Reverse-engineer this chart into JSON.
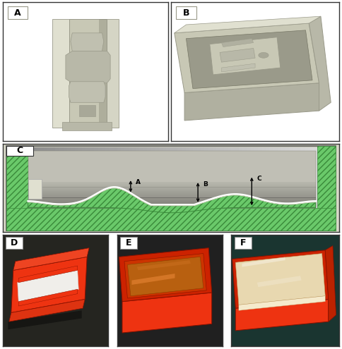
{
  "fig_width": 4.84,
  "fig_height": 4.95,
  "dpi": 100,
  "background": "#ffffff",
  "border_color": "#333333",
  "panel_labels": [
    "A",
    "B",
    "C",
    "D",
    "E",
    "F"
  ],
  "label_fontsize": 9,
  "gray_cad": "#c8c8b5",
  "gray_cad_dark": "#9a9a8a",
  "gray_cad_light": "#e0e0d0",
  "gray_cad_shadow": "#888878",
  "green_fill": "#6ac96a",
  "green_dark": "#3a8a3a",
  "red_print": "#cc2200",
  "red_bright": "#ee3311",
  "red_dark": "#881100",
  "beige_phantom": "#e8d8b0",
  "beige_light": "#f5eacc",
  "beige_side": "#c8b888",
  "dark_bg_d": "#222222",
  "dark_bg_e": "#222222",
  "teal_bg_f": "#1a3530",
  "white_surface": "#f0f0e8",
  "dim_labels": [
    "A",
    "B",
    "C"
  ],
  "panel_A_bg": "#ffffff",
  "panel_B_bg": "#ffffff",
  "panel_C_bg": "#dcdccc"
}
